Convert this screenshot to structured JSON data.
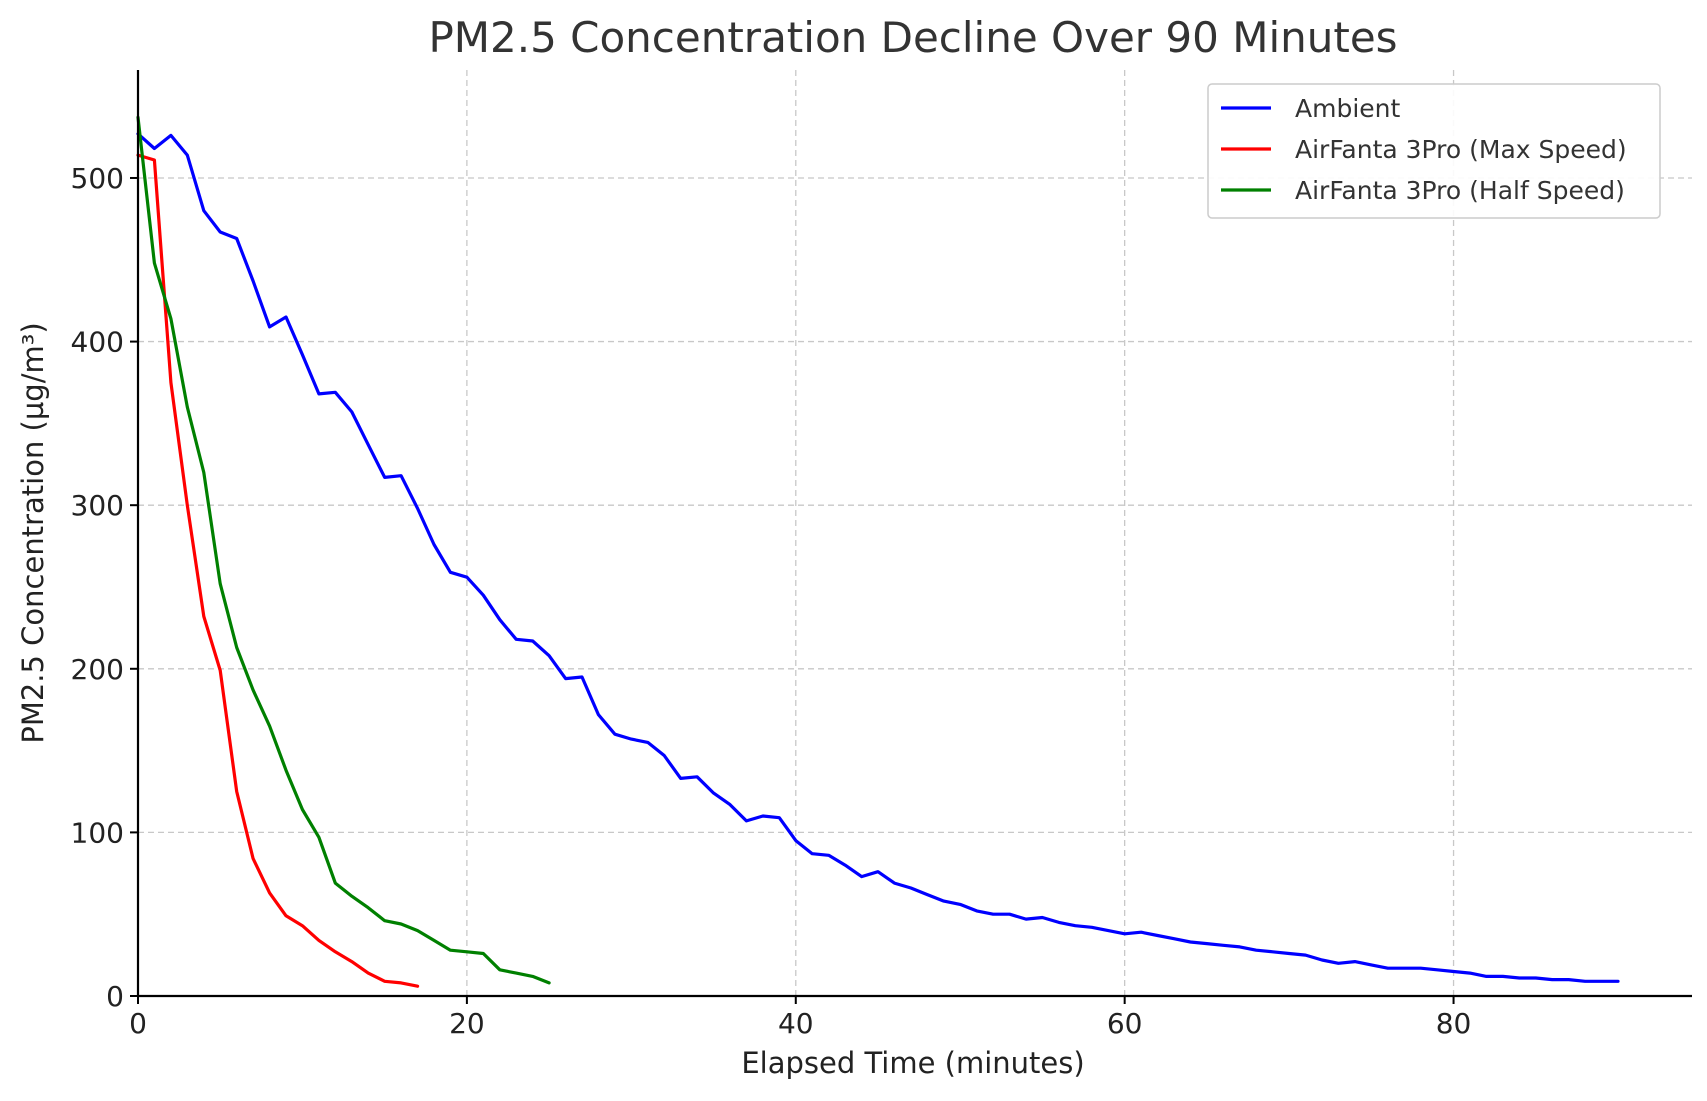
{
  "chart_data": {
    "type": "line",
    "title": "PM2.5 Concentration Decline Over 90 Minutes",
    "xlabel": "Elapsed Time (minutes)",
    "ylabel": "PM2.5 Concentration (µg/m³)",
    "xlim": [
      0,
      94.5
    ],
    "ylim": [
      0,
      566
    ],
    "xticks": [
      0,
      20,
      40,
      60,
      80
    ],
    "yticks": [
      0,
      100,
      200,
      300,
      400,
      500
    ],
    "grid": true,
    "legend_position": "top-right",
    "series": [
      {
        "name": "Ambient",
        "color": "#0000ff",
        "x": [
          0,
          1,
          2,
          3,
          4,
          5,
          6,
          7,
          8,
          9,
          10,
          11,
          12,
          13,
          14,
          15,
          16,
          17,
          18,
          19,
          20,
          21,
          22,
          23,
          24,
          25,
          26,
          27,
          28,
          29,
          30,
          31,
          32,
          33,
          34,
          35,
          36,
          37,
          38,
          39,
          40,
          41,
          42,
          43,
          44,
          45,
          46,
          47,
          48,
          49,
          50,
          51,
          52,
          53,
          54,
          55,
          56,
          57,
          58,
          59,
          60,
          61,
          62,
          63,
          64,
          65,
          66,
          67,
          68,
          69,
          70,
          71,
          72,
          73,
          74,
          75,
          76,
          77,
          78,
          79,
          80,
          81,
          82,
          83,
          84,
          85,
          86,
          87,
          88,
          89,
          90
        ],
        "y": [
          527,
          518,
          526,
          514,
          480,
          467,
          463,
          437,
          409,
          415,
          392,
          368,
          369,
          357,
          337,
          317,
          318,
          298,
          276,
          259,
          256,
          245,
          230,
          218,
          217,
          208,
          194,
          195,
          172,
          160,
          157,
          155,
          147,
          133,
          134,
          124,
          117,
          107,
          110,
          109,
          95,
          87,
          86,
          80,
          73,
          76,
          69,
          66,
          62,
          58,
          56,
          52,
          50,
          50,
          47,
          48,
          45,
          43,
          42,
          40,
          38,
          39,
          37,
          35,
          33,
          32,
          31,
          30,
          28,
          27,
          26,
          25,
          22,
          20,
          21,
          19,
          17,
          17,
          17,
          16,
          15,
          14,
          12,
          12,
          11,
          11,
          10,
          10,
          9,
          9,
          9
        ]
      },
      {
        "name": "AirFanta 3Pro (Max Speed)",
        "color": "#ff0000",
        "x": [
          0,
          1,
          2,
          3,
          4,
          5,
          6,
          7,
          8,
          9,
          10,
          11,
          12,
          13,
          14,
          15,
          16,
          17
        ],
        "y": [
          514,
          511,
          375,
          300,
          232,
          199,
          125,
          84,
          63,
          49,
          43,
          34,
          27,
          21,
          14,
          9,
          8,
          6
        ]
      },
      {
        "name": "AirFanta 3Pro (Half Speed)",
        "color": "#008000",
        "x": [
          0,
          1,
          2,
          3,
          4,
          5,
          6,
          7,
          8,
          9,
          10,
          11,
          12,
          13,
          14,
          15,
          16,
          17,
          18,
          19,
          20,
          21,
          22,
          23,
          24,
          25
        ],
        "y": [
          537,
          448,
          414,
          360,
          320,
          252,
          213,
          187,
          165,
          138,
          114,
          97,
          69,
          61,
          54,
          46,
          44,
          40,
          34,
          28,
          27,
          26,
          16,
          14,
          12,
          8
        ]
      }
    ]
  }
}
